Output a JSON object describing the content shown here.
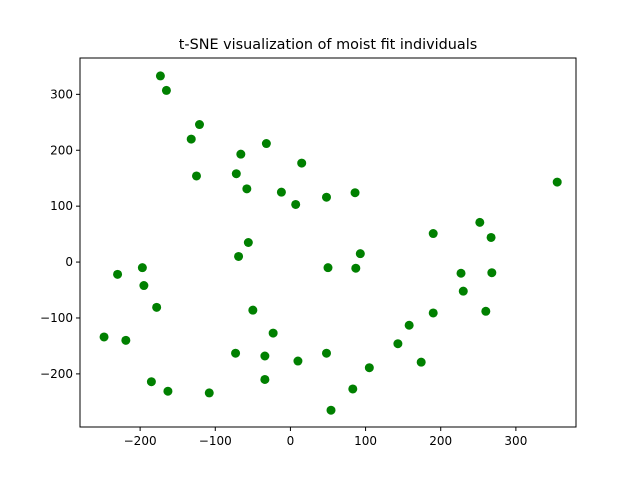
{
  "chart_data": {
    "type": "scatter",
    "title": "t-SNE visualization of moist fit individuals",
    "xlabel": "",
    "ylabel": "",
    "xlim": [
      -280,
      380
    ],
    "ylim": [
      -295,
      365
    ],
    "xticks": [
      -200,
      -100,
      0,
      100,
      200,
      300
    ],
    "yticks": [
      -200,
      -100,
      0,
      100,
      200,
      300
    ],
    "xtick_labels": [
      "−200",
      "−100",
      "0",
      "100",
      "200",
      "300"
    ],
    "ytick_labels": [
      "−200",
      "−100",
      "0",
      "100",
      "200",
      "300"
    ],
    "grid": false,
    "marker_color": "#008000",
    "points": [
      {
        "x": -173,
        "y": 333
      },
      {
        "x": -165,
        "y": 307
      },
      {
        "x": -121,
        "y": 246
      },
      {
        "x": -132,
        "y": 220
      },
      {
        "x": -125,
        "y": 154
      },
      {
        "x": -32,
        "y": 212
      },
      {
        "x": -66,
        "y": 193
      },
      {
        "x": 15,
        "y": 177
      },
      {
        "x": -72,
        "y": 158
      },
      {
        "x": -58,
        "y": 131
      },
      {
        "x": -12,
        "y": 125
      },
      {
        "x": 7,
        "y": 103
      },
      {
        "x": 48,
        "y": 116
      },
      {
        "x": 86,
        "y": 124
      },
      {
        "x": 355,
        "y": 143
      },
      {
        "x": 252,
        "y": 71
      },
      {
        "x": 267,
        "y": 44
      },
      {
        "x": 190,
        "y": 51
      },
      {
        "x": -56,
        "y": 35
      },
      {
        "x": -69,
        "y": 10
      },
      {
        "x": 93,
        "y": 15
      },
      {
        "x": 50,
        "y": -10
      },
      {
        "x": 87,
        "y": -11
      },
      {
        "x": -197,
        "y": -10
      },
      {
        "x": -230,
        "y": -22
      },
      {
        "x": 227,
        "y": -20
      },
      {
        "x": 268,
        "y": -19
      },
      {
        "x": -195,
        "y": -42
      },
      {
        "x": 230,
        "y": -52
      },
      {
        "x": -178,
        "y": -81
      },
      {
        "x": -50,
        "y": -86
      },
      {
        "x": 260,
        "y": -88
      },
      {
        "x": 190,
        "y": -91
      },
      {
        "x": 158,
        "y": -113
      },
      {
        "x": -23,
        "y": -127
      },
      {
        "x": -248,
        "y": -134
      },
      {
        "x": -219,
        "y": -140
      },
      {
        "x": 143,
        "y": -146
      },
      {
        "x": -73,
        "y": -163
      },
      {
        "x": -34,
        "y": -168
      },
      {
        "x": 48,
        "y": -163
      },
      {
        "x": 10,
        "y": -177
      },
      {
        "x": 174,
        "y": -179
      },
      {
        "x": 105,
        "y": -189
      },
      {
        "x": -34,
        "y": -210
      },
      {
        "x": -185,
        "y": -214
      },
      {
        "x": -163,
        "y": -231
      },
      {
        "x": -108,
        "y": -234
      },
      {
        "x": 83,
        "y": -227
      },
      {
        "x": 54,
        "y": -265
      }
    ]
  }
}
